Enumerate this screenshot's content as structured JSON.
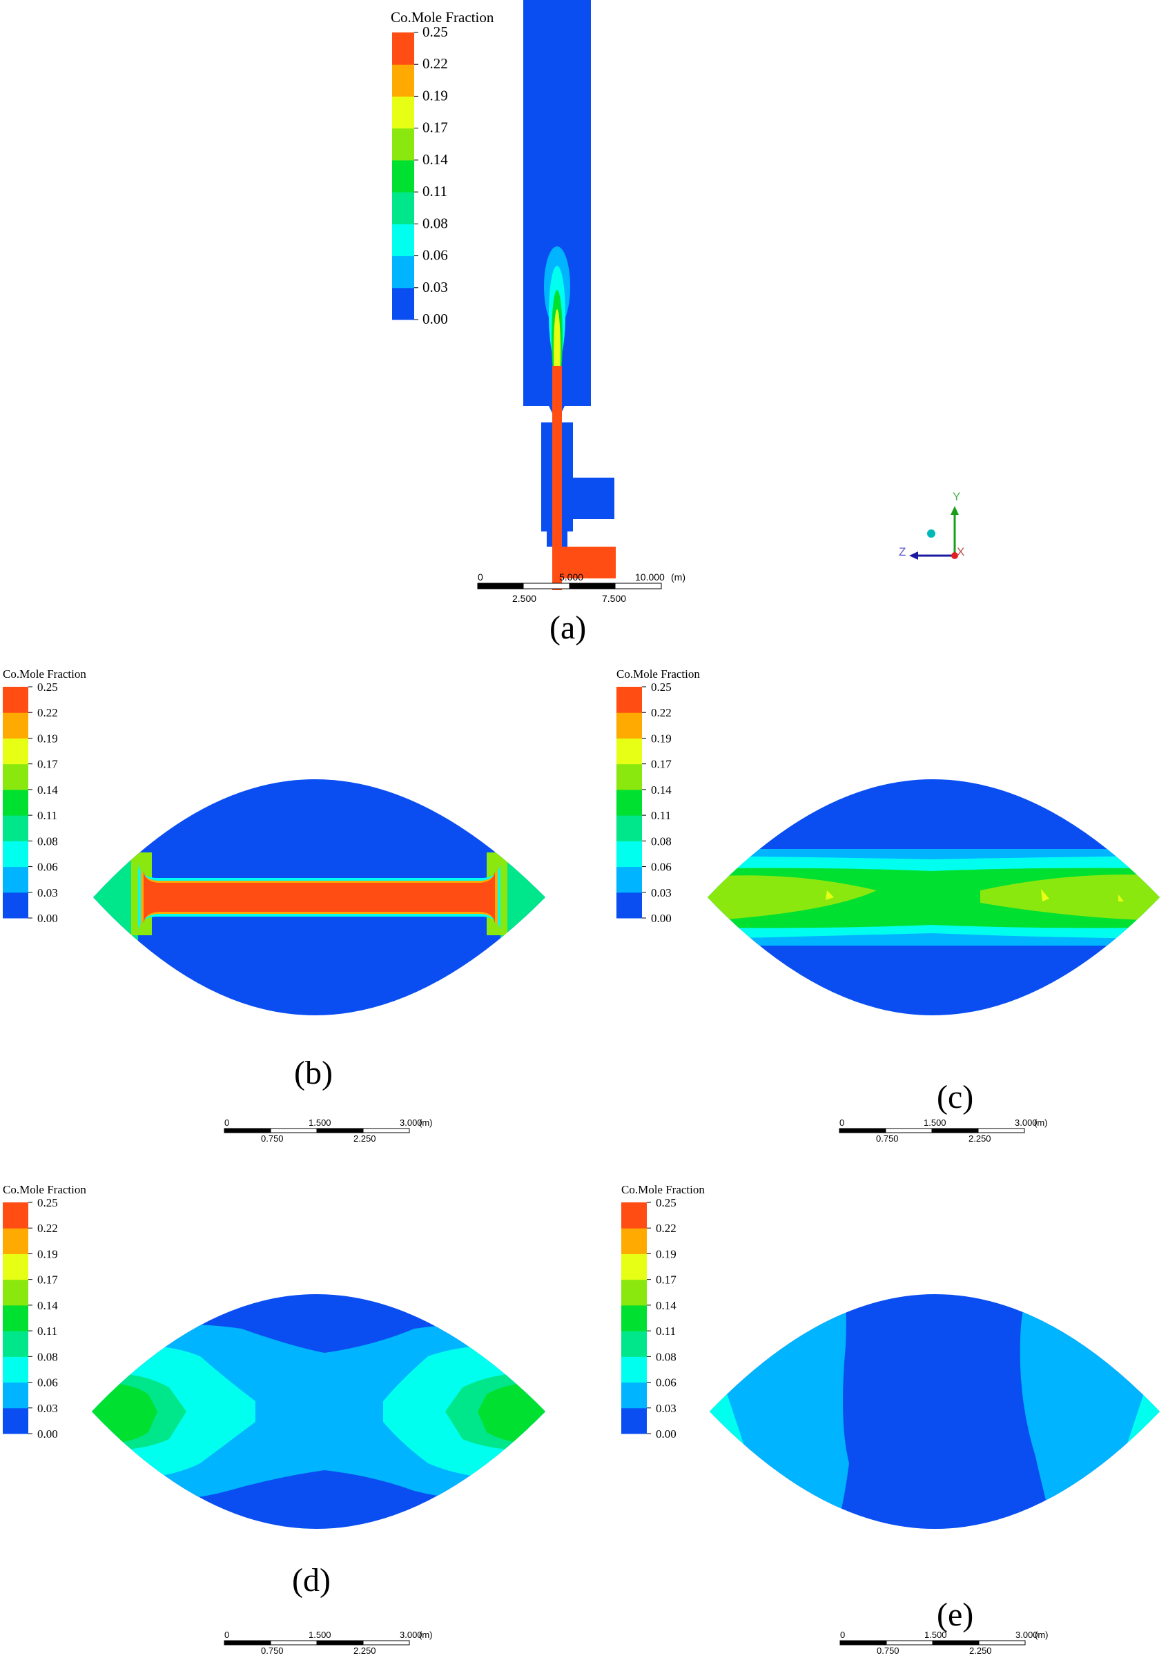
{
  "colors": {
    "bg_blue": "#0a4ef2",
    "scale": [
      "#0a4ef2",
      "#00b4ff",
      "#00ffee",
      "#00e68a",
      "#00e030",
      "#8ae80f",
      "#e6ff14",
      "#ffaa00",
      "#ff4d14"
    ]
  },
  "legend": {
    "title": "Co.Mole Fraction",
    "ticks": [
      "0.25",
      "0.22",
      "0.19",
      "0.17",
      "0.14",
      "0.11",
      "0.08",
      "0.06",
      "0.03",
      "0.00"
    ]
  },
  "panels": {
    "a": {
      "caption": "(a)"
    },
    "b": {
      "caption": "(b)"
    },
    "c": {
      "caption": "(c)"
    },
    "d": {
      "caption": "(d)"
    },
    "e": {
      "caption": "(e)"
    }
  },
  "scalebar_a": {
    "top": [
      "0",
      "5.000",
      "10.000"
    ],
    "unit": "(m)",
    "bottom": [
      "2.500",
      "7.500"
    ]
  },
  "scalebar_small": {
    "top": [
      "0",
      "1.500",
      "3.000"
    ],
    "unit": "(m)",
    "bottom": [
      "0.750",
      "2.250"
    ]
  },
  "axes": {
    "y": "Y",
    "z": "Z",
    "x": "X"
  }
}
